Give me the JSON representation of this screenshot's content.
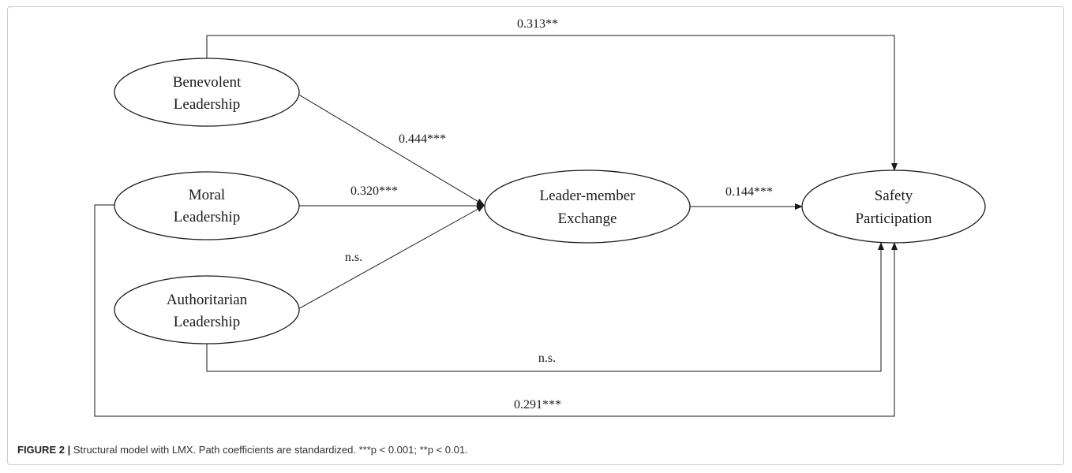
{
  "nodes": {
    "benevolent": [
      "Benevolent",
      "Leadership"
    ],
    "moral": [
      "Moral",
      "Leadership"
    ],
    "authoritarian": [
      "Authoritarian",
      "Leadership"
    ],
    "lmx": [
      "Leader-member",
      "Exchange"
    ],
    "safety": [
      "Safety",
      "Participation"
    ]
  },
  "edges": {
    "benevolent_safety": "0.313**",
    "benevolent_lmx": "0.444***",
    "moral_lmx": "0.320***",
    "authoritarian_lmx": "n.s.",
    "lmx_safety": "0.144***",
    "authoritarian_safety": "n.s.",
    "moral_safety": "0.291***"
  },
  "caption": {
    "label": "FIGURE 2 |",
    "text": "Structural model with LMX. Path coefficients are standardized. ***p < 0.001; **p < 0.01."
  }
}
